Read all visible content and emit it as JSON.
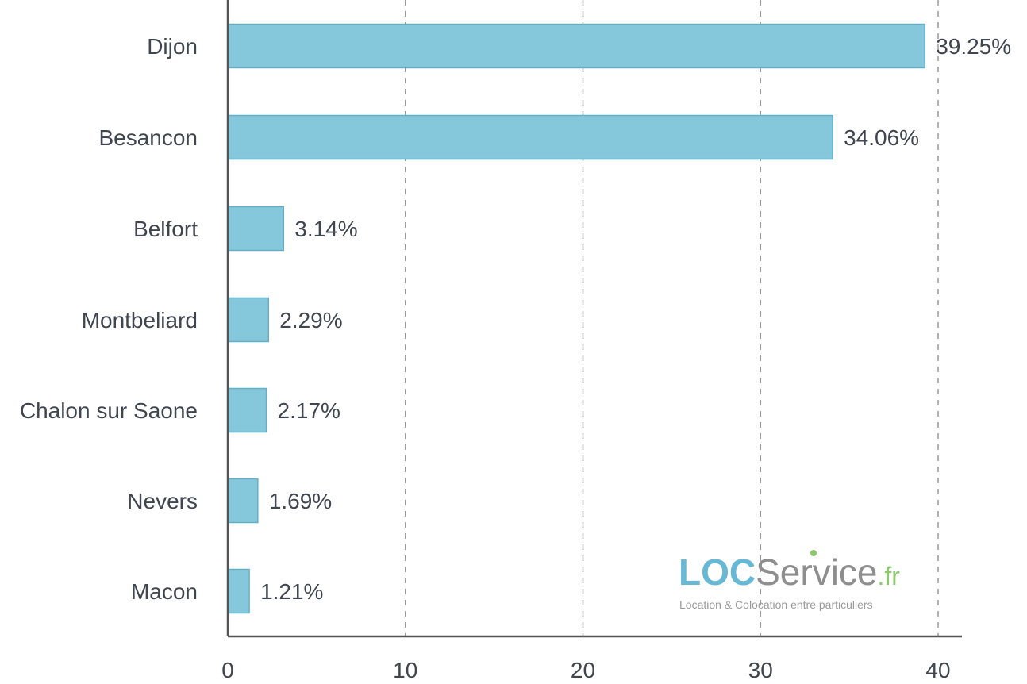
{
  "chart_data": {
    "type": "bar",
    "orientation": "horizontal",
    "categories": [
      "Dijon",
      "Besancon",
      "Belfort",
      "Montbeliard",
      "Chalon sur Saone",
      "Nevers",
      "Macon"
    ],
    "values": [
      39.25,
      34.06,
      3.14,
      2.29,
      2.17,
      1.69,
      1.21
    ],
    "data_labels": [
      "39.25%",
      "34.06%",
      "3.14%",
      "2.29%",
      "2.17%",
      "1.69%",
      "1.21%"
    ],
    "x_ticks": [
      "0",
      "10",
      "20",
      "30",
      "40"
    ],
    "xlim": [
      0,
      40
    ],
    "grid": true,
    "bar_color": "#86c8db",
    "bar_stroke_color": "#65afc6"
  },
  "branding": {
    "loc": "LOC",
    "service": "Service",
    "fr": ".fr",
    "tagline": "Location & Colocation entre particuliers",
    "colors": {
      "loc": "#67b8d5",
      "service": "#8e8e8e",
      "fr": "#8bc96b"
    }
  }
}
